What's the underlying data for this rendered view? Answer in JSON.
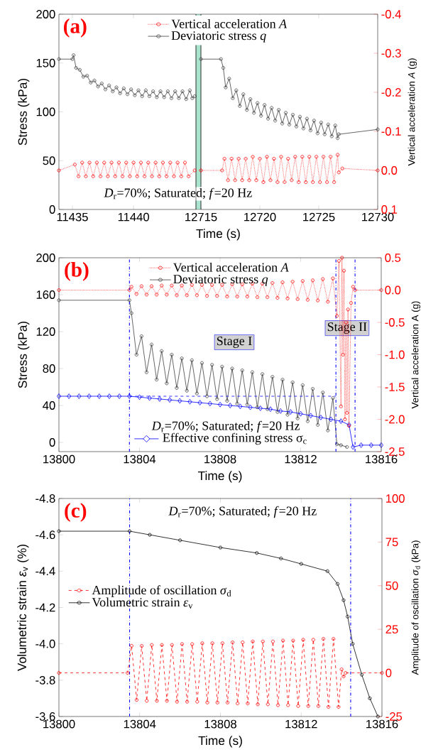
{
  "chart_data": [
    {
      "type": "line",
      "title": "(a)",
      "ylabel": "Stress (kPa)",
      "xlim": [
        11433.9,
        11445.1
      ],
      "xticks": [
        11435,
        11440
      ],
      "ylim": [
        0,
        200
      ],
      "yticks": [
        0,
        50,
        100,
        150,
        200
      ],
      "y2lim": [
        0.1,
        -0.4
      ],
      "tick_labels": [
        "x",
        "y"
      ],
      "legend": "top",
      "annotations": [
        "*D*$_{r}$=70%;  Saturated; *f*=20 Hz"
      ],
      "series": [
        {
          "name": "Vertical acceleration *A*",
          "color": "#ff0000",
          "axis": "y2",
          "marker": "circle",
          "line_style": "dotted",
          "x": [
            11433.9,
            11435.2,
            11435.5,
            11435.8,
            11436.1,
            11436.4,
            11436.7,
            11437.0,
            11437.3,
            11437.6,
            11437.9,
            11438.2,
            11438.5,
            11438.8,
            11439.1,
            11439.4,
            11439.7,
            11440.0,
            11440.3,
            11440.6,
            11440.9,
            11441.2,
            11441.5,
            11441.8,
            11442.1,
            11442.4,
            11442.7,
            11443.0,
            11443.3,
            11443.6,
            11443.9,
            11444.2,
            11444.5,
            11445.0
          ],
          "values": [
            0,
            -0.015,
            0.015,
            -0.02,
            0.015,
            -0.02,
            0.015,
            -0.02,
            0.015,
            -0.02,
            0.015,
            -0.02,
            0.015,
            -0.02,
            0.015,
            -0.02,
            0.015,
            -0.02,
            0.015,
            -0.02,
            0.015,
            -0.02,
            0.015,
            -0.02,
            0.015,
            -0.02,
            0.015,
            -0.02,
            0.015,
            -0.02,
            0.015,
            -0.02,
            0.015,
            0
          ]
        },
        {
          "name": "Deviatoric stress *q*",
          "color": "#404040",
          "axis": "y",
          "marker": "circle",
          "line_style": "solid",
          "x": [
            11433.9,
            11435.0,
            11435.1,
            11435.3,
            11435.6,
            11435.9,
            11436.2,
            11436.5,
            11436.8,
            11437.1,
            11437.4,
            11437.7,
            11438.0,
            11438.3,
            11438.6,
            11438.9,
            11439.2,
            11439.5,
            11439.8,
            11440.1,
            11440.4,
            11440.7,
            11441.0,
            11441.3,
            11441.6,
            11441.9,
            11442.2,
            11442.5,
            11442.8,
            11443.1,
            11443.4,
            11443.7,
            11444.0,
            11444.3,
            11444.6,
            11444.8,
            11445.0
          ],
          "values": [
            154,
            154,
            158,
            145,
            143,
            136,
            137,
            130,
            132,
            126,
            129,
            123,
            127,
            121,
            125,
            119,
            124,
            118,
            123,
            117,
            122,
            116,
            122,
            116,
            121,
            115,
            121,
            115,
            121,
            114,
            121,
            114,
            121,
            113,
            122,
            114,
            116
          ]
        }
      ]
    },
    {
      "type": "line",
      "xlabel": "Time (s)",
      "y2label": "Vertical acceleration *A* (g)",
      "xlim": [
        12715,
        12730
      ],
      "xticks": [
        12715,
        12720,
        12725,
        12730
      ],
      "ylim": [
        0,
        200
      ],
      "y2lim": [
        0.1,
        -0.4
      ],
      "y2ticks": [
        {
          "value": 0.1,
          "label": "0.1"
        },
        {
          "value": 0.0,
          "label": "0.0"
        },
        {
          "value": -0.1,
          "label": "-0.1"
        },
        {
          "value": -0.2,
          "label": "-0.2"
        },
        {
          "value": -0.3,
          "label": "-0.3"
        },
        {
          "value": -0.4,
          "label": "-0.4"
        }
      ],
      "tick_labels": [
        "x",
        "y2"
      ],
      "series": [
        {
          "color": "#ff0000",
          "axis": "y2",
          "marker": "circle",
          "line_style": "dotted",
          "x": [
            12715,
            12716.8,
            12717.0,
            12717.3,
            12717.6,
            12717.9,
            12718.2,
            12718.5,
            12718.8,
            12719.1,
            12719.4,
            12719.7,
            12720.0,
            12720.3,
            12720.6,
            12720.9,
            12721.2,
            12721.5,
            12721.8,
            12722.1,
            12722.4,
            12722.7,
            12723.0,
            12723.3,
            12723.6,
            12723.9,
            12724.2,
            12724.5,
            12724.8,
            12725.1,
            12725.4,
            12725.7,
            12726.0,
            12726.3,
            12726.6,
            12726.7,
            12727.0,
            12730
          ],
          "values": [
            0,
            0,
            -0.03,
            0.025,
            -0.03,
            0.025,
            -0.03,
            0.025,
            -0.03,
            0.025,
            -0.035,
            0.025,
            -0.03,
            0.03,
            -0.035,
            0.025,
            -0.03,
            0.03,
            -0.035,
            0.03,
            -0.03,
            0.025,
            -0.035,
            0.03,
            -0.035,
            0.03,
            -0.035,
            0.03,
            -0.035,
            0.03,
            -0.035,
            0.03,
            -0.035,
            0.03,
            -0.04,
            0.005,
            -0.005,
            0
          ]
        },
        {
          "color": "#404040",
          "axis": "y",
          "marker": "circle",
          "line_style": "solid",
          "x": [
            12715,
            12716.7,
            12716.9,
            12717.1,
            12717.4,
            12717.7,
            12718.0,
            12718.3,
            12718.6,
            12718.9,
            12719.2,
            12719.5,
            12719.8,
            12720.1,
            12720.4,
            12720.7,
            12721.0,
            12721.3,
            12721.6,
            12721.9,
            12722.2,
            12722.5,
            12722.8,
            12723.1,
            12723.4,
            12723.7,
            12724.0,
            12724.3,
            12724.6,
            12724.9,
            12725.2,
            12725.5,
            12725.8,
            12726.1,
            12726.4,
            12726.6,
            12726.7,
            12730.0
          ],
          "values": [
            154,
            154,
            145,
            125,
            134,
            114,
            122,
            106,
            118,
            102,
            113,
            99,
            109,
            96,
            107,
            93,
            104,
            91,
            102,
            88,
            99,
            87,
            97,
            85,
            95,
            83,
            93,
            81,
            91,
            78,
            89,
            77,
            87,
            75,
            86,
            73,
            77,
            82
          ]
        }
      ]
    },
    {
      "type": "line",
      "title": "(b)",
      "xlabel": "Time (s)",
      "ylabel": "Stress (kPa)",
      "y2label": "Vertical acceleration A (g)",
      "xlim": [
        13800,
        13816
      ],
      "xticks": [
        13800,
        13804,
        13808,
        13812,
        13816
      ],
      "ylim": [
        -10,
        200
      ],
      "yticks": [
        0,
        40,
        80,
        120,
        160,
        200
      ],
      "y2lim": [
        -2.5,
        0.5
      ],
      "y2ticks": [
        {
          "value": -2.5,
          "label": "-2.5"
        },
        {
          "value": -2.0,
          "label": "-2.0"
        },
        {
          "value": -1.5,
          "label": "-1.5"
        },
        {
          "value": -1.0,
          "label": "-1.0"
        },
        {
          "value": -0.5,
          "label": "-0.5"
        },
        {
          "value": 0.0,
          "label": "0.0"
        },
        {
          "value": 0.5,
          "label": "0.5"
        }
      ],
      "legend": "top",
      "annotations": [
        "Stage I",
        "Stage II",
        "*D*$_{r}$=70%;  Saturated; *f*=20 Hz"
      ],
      "ref_lines": [
        {
          "axis": "x",
          "value": 13803.5,
          "color": "#0000ff",
          "line_style": "dashdot"
        },
        {
          "axis": "x",
          "value": 13813.75,
          "color": "#0000ff",
          "line_style": "dashdot"
        },
        {
          "axis": "x",
          "value": 13814.7,
          "color": "#0000ff",
          "line_style": "dashdot"
        }
      ],
      "series": [
        {
          "name": "Vertical acceleration *A*",
          "color": "#ff0000",
          "axis": "y2",
          "marker": "circle",
          "line_style": "dotted",
          "x": [
            13800,
            13803.5,
            13803.6,
            13803.85,
            13804.1,
            13804.35,
            13804.6,
            13804.85,
            13805.1,
            13805.35,
            13805.6,
            13805.85,
            13806.1,
            13806.35,
            13806.6,
            13806.85,
            13807.1,
            13807.35,
            13807.6,
            13807.85,
            13808.1,
            13808.35,
            13808.6,
            13808.85,
            13809.1,
            13809.35,
            13809.6,
            13809.85,
            13810.1,
            13810.35,
            13810.6,
            13810.85,
            13811.1,
            13811.35,
            13811.6,
            13811.85,
            13812.1,
            13812.35,
            13812.6,
            13812.85,
            13813.1,
            13813.35,
            13813.6,
            13813.8,
            13813.9,
            13814.0,
            13814.05,
            13814.1,
            13814.15,
            13814.2,
            13814.25,
            13814.3,
            13814.35,
            13814.4,
            13814.5,
            13814.6,
            13814.7,
            13816
          ],
          "values": [
            0,
            0,
            0.05,
            -0.06,
            0.06,
            -0.07,
            0.06,
            -0.07,
            0.07,
            -0.07,
            0.07,
            -0.08,
            0.07,
            -0.08,
            0.08,
            -0.08,
            0.08,
            -0.09,
            0.08,
            -0.09,
            0.08,
            -0.1,
            0.09,
            -0.1,
            0.09,
            -0.1,
            0.1,
            -0.11,
            0.1,
            -0.11,
            0.11,
            -0.12,
            0.12,
            -0.13,
            0.13,
            -0.14,
            0.14,
            -0.15,
            0.15,
            -0.16,
            0.17,
            -0.18,
            0.18,
            -0.4,
            0.45,
            -1.8,
            0.5,
            -1.0,
            0.3,
            -2.0,
            -0.5,
            -1.9,
            -0.3,
            -2.1,
            -0.2,
            0.05,
            0,
            0
          ]
        },
        {
          "name": "Deviatoric stress *q*",
          "color": "#404040",
          "axis": "y",
          "marker": "circle",
          "line_style": "solid",
          "x": [
            13800,
            13803.5,
            13803.6,
            13803.85,
            13804.1,
            13804.35,
            13804.6,
            13804.85,
            13805.1,
            13805.35,
            13805.6,
            13805.85,
            13806.1,
            13806.35,
            13806.6,
            13806.85,
            13807.1,
            13807.35,
            13807.6,
            13807.85,
            13808.1,
            13808.35,
            13808.6,
            13808.85,
            13809.1,
            13809.35,
            13809.6,
            13809.85,
            13810.1,
            13810.35,
            13810.6,
            13810.85,
            13811.1,
            13811.35,
            13811.6,
            13811.85,
            13812.1,
            13812.35,
            13812.6,
            13812.85,
            13813.1,
            13813.35,
            13813.6,
            13813.8,
            13814.0,
            13814.3
          ],
          "values": [
            154,
            154,
            140,
            95,
            115,
            76,
            106,
            68,
            99,
            64,
            95,
            59,
            91,
            56,
            89,
            53,
            86,
            50,
            84,
            47,
            82,
            45,
            80,
            42,
            78,
            41,
            76,
            38,
            74,
            36,
            71,
            33,
            68,
            30,
            65,
            26,
            62,
            23,
            58,
            19,
            54,
            13,
            48,
            -2,
            -3,
            -5
          ]
        },
        {
          "name": "Effective confining stress σ$_{c}$",
          "color": "#0000ff",
          "axis": "y",
          "marker": "diamond",
          "line_style": "solid",
          "x": [
            13800,
            13800.5,
            13801,
            13801.5,
            13802,
            13802.5,
            13803,
            13803.5,
            13804,
            13804.5,
            13805,
            13805.5,
            13806,
            13806.5,
            13807,
            13807.5,
            13808,
            13808.5,
            13809,
            13809.5,
            13810,
            13810.5,
            13811,
            13811.5,
            13812,
            13812.5,
            13813,
            13813.5,
            13814,
            13814.4,
            13814.6,
            13815,
            13815.5,
            13816
          ],
          "values": [
            50,
            50,
            50,
            50,
            50,
            50,
            50,
            50,
            49,
            48,
            47,
            46,
            45,
            44,
            43,
            42,
            41,
            40,
            39,
            38,
            37,
            36,
            34,
            33,
            31,
            29,
            27,
            25,
            23,
            19,
            -5,
            -3,
            -3,
            -3
          ]
        },
        {
          "color": "#0000ff",
          "axis": "y",
          "marker": "none",
          "line_style": "dashed",
          "x": [
            13803.5,
            13813.75
          ],
          "values": [
            50,
            50
          ]
        }
      ]
    },
    {
      "type": "line",
      "title": "(c)",
      "xlabel": "Time (s)",
      "ylabel": "Volumetric strain  *ε*$_{v}$ (%)",
      "y2label": "Amplitude of oscillation *σ*$_{d}$ (kPa)",
      "xlim": [
        13800,
        13816
      ],
      "xticks": [
        13800,
        13804,
        13808,
        13812,
        13816
      ],
      "ylim": [
        -3.6,
        -4.8
      ],
      "yticks": [
        {
          "value": -3.6,
          "label": "-3.6"
        },
        {
          "value": -3.8,
          "label": "-3.8"
        },
        {
          "value": -4.0,
          "label": "-4.0"
        },
        {
          "value": -4.2,
          "label": "-4.2"
        },
        {
          "value": -4.4,
          "label": "-4.4"
        },
        {
          "value": -4.6,
          "label": "-4.6"
        },
        {
          "value": -4.8,
          "label": "-4.8"
        }
      ],
      "y2lim": [
        -25,
        100
      ],
      "y2ticks": [
        -25,
        0,
        25,
        50,
        75,
        100
      ],
      "legend": "left",
      "annotations": [
        "*D*$_{r}$=70%;  Saturated; *f*=20 Hz"
      ],
      "ref_lines": [
        {
          "axis": "x",
          "value": 13803.5,
          "color": "#0000ff",
          "line_style": "dashdot"
        },
        {
          "axis": "x",
          "value": 13814.45,
          "color": "#0000ff",
          "line_style": "dashdot"
        }
      ],
      "series": [
        {
          "name": "Amplitude of oscillation *σ*$_{d}$",
          "color": "#ff0000",
          "axis": "y2",
          "marker": "circle",
          "line_style": "dashed",
          "x": [
            13800,
            13803.4,
            13803.6,
            13803.85,
            13804.1,
            13804.35,
            13804.6,
            13804.85,
            13805.1,
            13805.35,
            13805.6,
            13805.85,
            13806.1,
            13806.35,
            13806.6,
            13806.85,
            13807.1,
            13807.35,
            13807.6,
            13807.85,
            13808.1,
            13808.35,
            13808.6,
            13808.85,
            13809.1,
            13809.35,
            13809.6,
            13809.85,
            13810.1,
            13810.35,
            13810.6,
            13810.85,
            13811.1,
            13811.35,
            13811.6,
            13811.85,
            13812.1,
            13812.35,
            13812.6,
            13812.85,
            13813.1,
            13813.35,
            13813.6,
            13813.85,
            13814.0,
            13814.1,
            13814.2,
            13816
          ],
          "values": [
            0,
            0,
            15.5,
            -15.5,
            15.5,
            -16,
            16,
            -16,
            16,
            -16,
            16,
            -16.5,
            16.5,
            -16.5,
            16.5,
            -16.5,
            17,
            -17,
            17,
            -17,
            17,
            -17,
            17.5,
            -17.5,
            17.5,
            -17.5,
            18,
            -18,
            18,
            -18,
            18,
            -18.5,
            18.5,
            -18.5,
            18.5,
            -19,
            19,
            -19,
            19,
            -19,
            19.5,
            -19.5,
            19.5,
            -19.5,
            2,
            -2,
            0,
            0
          ]
        },
        {
          "name": "Volumetric strain *ε*$_{v}$",
          "color": "#000000",
          "axis": "y",
          "marker": "circle",
          "line_style": "solid",
          "x": [
            13800,
            13803.5,
            13804.5,
            13806,
            13808,
            13809.8,
            13811,
            13812,
            13813.3,
            13813.8,
            13814.1,
            13814.3,
            13814.55,
            13815,
            13815.4,
            13815.8
          ],
          "values": [
            -4.62,
            -4.62,
            -4.6,
            -4.57,
            -4.53,
            -4.5,
            -4.47,
            -4.44,
            -4.4,
            -4.33,
            -4.24,
            -4.15,
            -4.0,
            -3.83,
            -3.7,
            -3.6
          ]
        }
      ]
    }
  ]
}
